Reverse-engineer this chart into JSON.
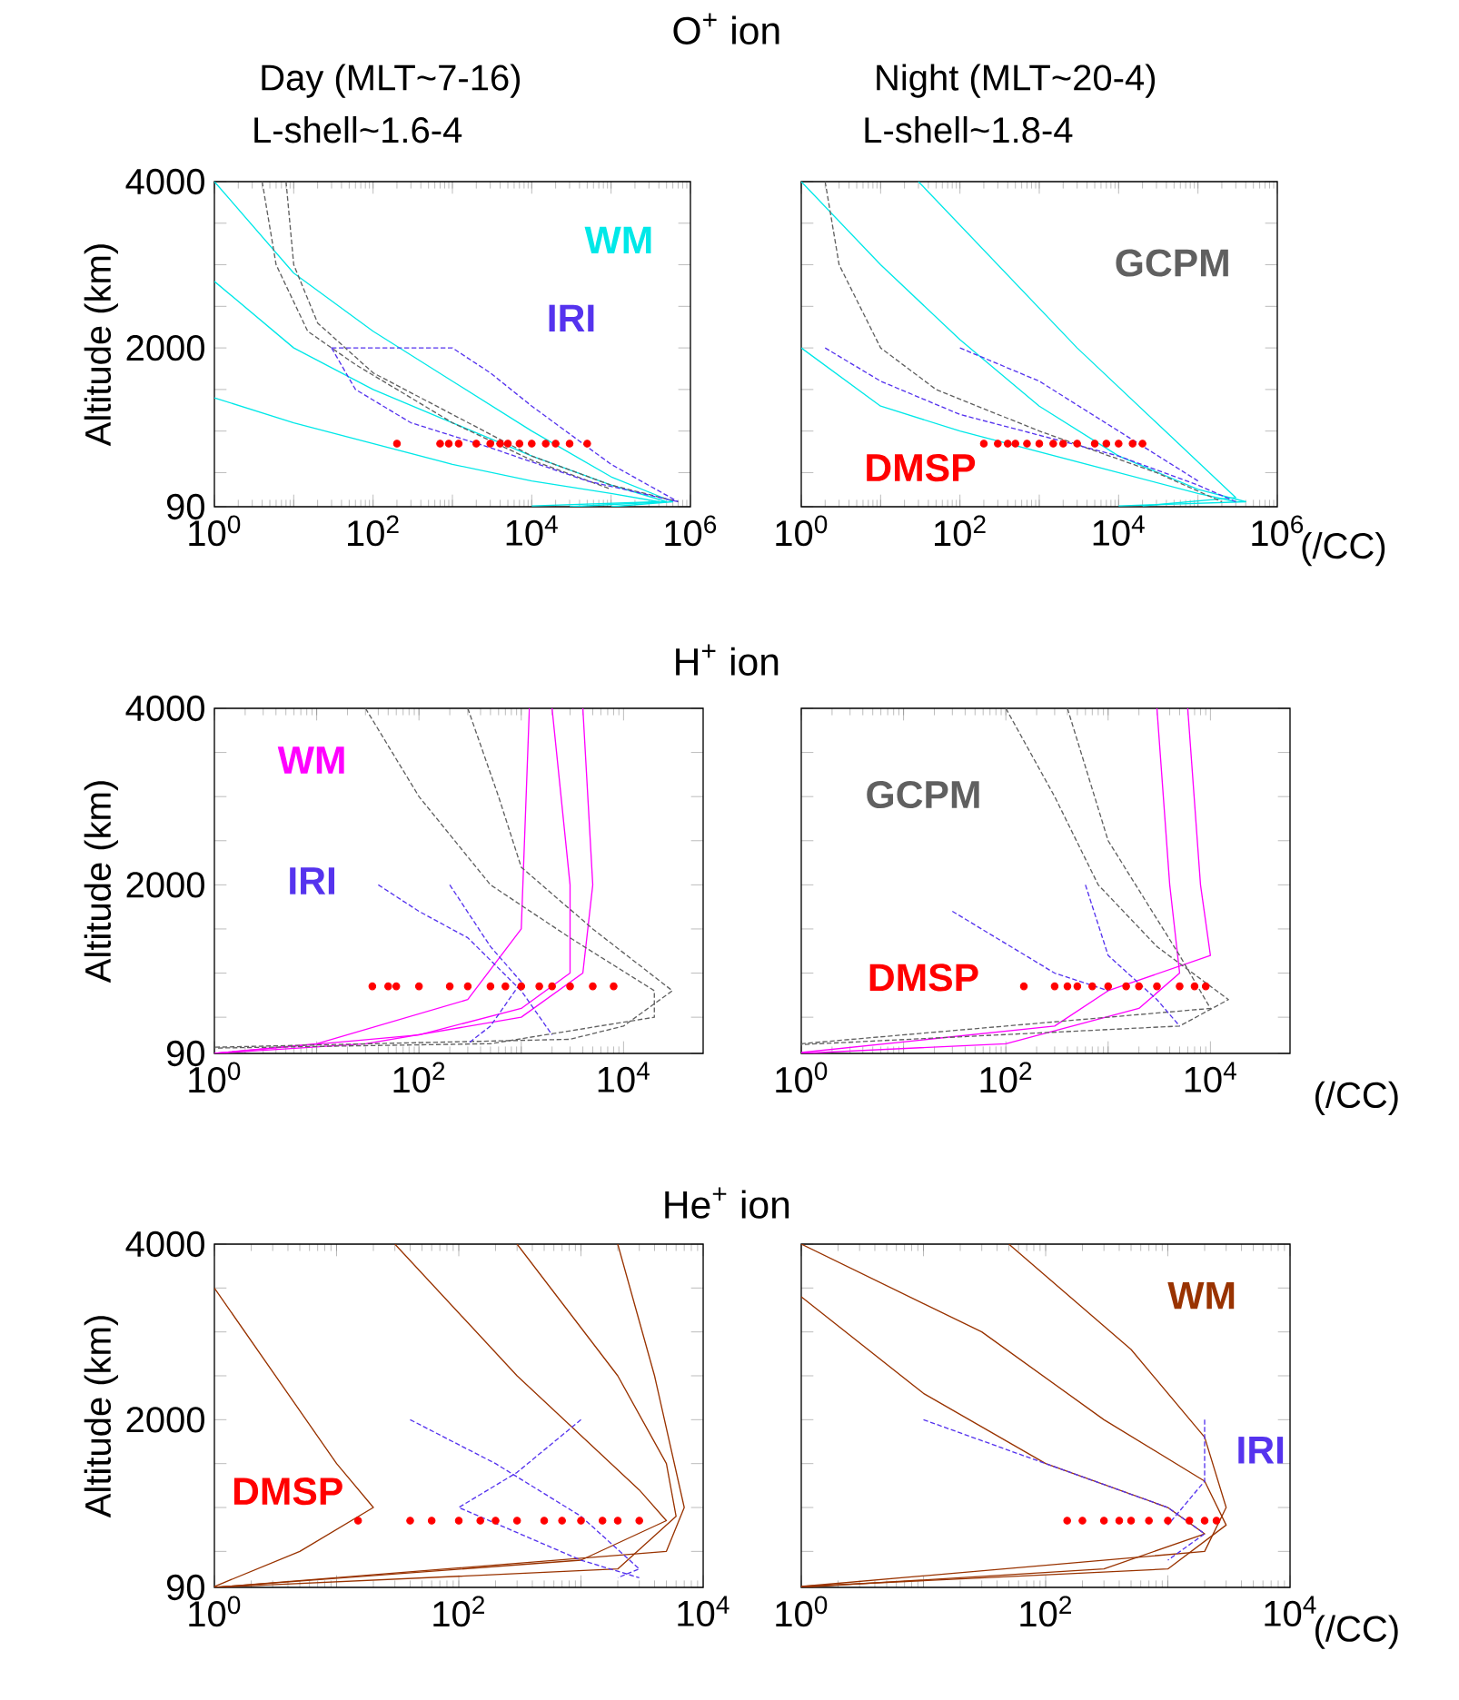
{
  "chart_data": [
    {
      "type": "line",
      "title": "O$^{+}$ ion",
      "subtitle": "Day (MLT~7-16)",
      "annotations": [
        "L-shell~1.6-4"
      ],
      "ylabel": "Altitude (km)",
      "xlim": [
        1,
        1000000
      ],
      "ylim": [
        90,
        4000
      ],
      "log": "x",
      "xticks": [
        {
          "value": 1,
          "label": "10$^{0}$"
        },
        {
          "value": 10,
          "label": null
        },
        {
          "value": 100,
          "label": "10$^{2}$"
        },
        {
          "value": 1000,
          "label": null
        },
        {
          "value": 10000,
          "label": "10$^{4}$"
        },
        {
          "value": 100000,
          "label": null
        },
        {
          "value": 1000000,
          "label": "10$^{6}$"
        }
      ],
      "yticks": [
        90,
        {
          "value": 500,
          "label": null
        },
        {
          "value": 1000,
          "label": null
        },
        {
          "value": 1500,
          "label": null
        },
        2000,
        {
          "value": 2500,
          "label": null
        },
        {
          "value": 3000,
          "label": null
        },
        {
          "value": 3500,
          "label": null
        },
        4000
      ],
      "series": [
        {
          "name": "WM",
          "type": "line",
          "line_style": "solid",
          "color": "#00e8e8",
          "x": [
            1,
            10,
            100,
            1000,
            10000,
            100000,
            600000,
            100000
          ],
          "values": [
            4000,
            2900,
            2200,
            1600,
            1000,
            450,
            150,
            90
          ]
        },
        {
          "type": "line",
          "line_style": "solid",
          "color": "#00e8e8",
          "x": [
            1,
            10,
            100,
            1000,
            10000,
            100000,
            500000,
            30000
          ],
          "values": [
            2800,
            2000,
            1500,
            1100,
            700,
            350,
            150,
            90
          ]
        },
        {
          "type": "line",
          "line_style": "solid",
          "color": "#00e8e8",
          "x": [
            1,
            10,
            100,
            1000,
            10000,
            100000,
            400000,
            10000
          ],
          "values": [
            1400,
            1100,
            850,
            600,
            400,
            250,
            150,
            100
          ]
        },
        {
          "type": "line",
          "line_style": "dashed",
          "color": "#606060",
          "x": [
            8,
            10,
            20,
            100,
            1000,
            10000,
            100000,
            700000
          ],
          "values": [
            4000,
            3000,
            2300,
            1700,
            1200,
            700,
            350,
            150
          ]
        },
        {
          "type": "line",
          "line_style": "dashed",
          "color": "#606060",
          "x": [
            4,
            6,
            15,
            60,
            1000,
            10000,
            100000
          ],
          "values": [
            4000,
            3000,
            2200,
            1800,
            1100,
            650,
            300
          ]
        },
        {
          "name": "IRI",
          "type": "line",
          "line_style": "dashed",
          "color": "#5533ee",
          "x": [
            30,
            1000,
            3000,
            10000,
            100000,
            700000
          ],
          "values": [
            2000,
            2000,
            1700,
            1300,
            600,
            150
          ]
        },
        {
          "type": "line",
          "line_style": "dashed",
          "color": "#5533ee",
          "x": [
            30,
            60,
            300,
            3000,
            50000,
            700000
          ],
          "values": [
            2000,
            1500,
            1100,
            800,
            400,
            150
          ]
        },
        {
          "type": "scatter",
          "marker": "circle",
          "color": "#ff0000",
          "x": [
            200,
            700,
            900,
            1200,
            2000,
            3000,
            4000,
            5000,
            7000,
            10000,
            15000,
            20000,
            30000,
            50000
          ],
          "values": [
            850,
            850,
            850,
            850,
            850,
            850,
            850,
            850,
            850,
            850,
            850,
            850,
            850,
            850
          ]
        }
      ]
    },
    {
      "type": "line",
      "subtitle": "Night (MLT~20-4)",
      "annotations": [
        "L-shell~1.8-4"
      ],
      "xlabel": "(/CC)",
      "tick_labels": "x",
      "xlim": [
        1,
        1000000
      ],
      "ylim": [
        90,
        4000
      ],
      "log": "x",
      "xticks": [
        {
          "value": 1,
          "label": "10$^{0}$"
        },
        {
          "value": 10,
          "label": null
        },
        {
          "value": 100,
          "label": "10$^{2}$"
        },
        {
          "value": 1000,
          "label": null
        },
        {
          "value": 10000,
          "label": "10$^{4}$"
        },
        {
          "value": 100000,
          "label": null
        },
        {
          "value": 1000000,
          "label": "10$^{6}$"
        }
      ],
      "yticks": [
        90,
        {
          "value": 500,
          "label": null
        },
        {
          "value": 1000,
          "label": null
        },
        {
          "value": 1500,
          "label": null
        },
        2000,
        {
          "value": 2500,
          "label": null
        },
        {
          "value": 3000,
          "label": null
        },
        {
          "value": 3500,
          "label": null
        },
        4000
      ],
      "series": [
        {
          "type": "line",
          "line_style": "solid",
          "color": "#00e8e8",
          "x": [
            1,
            10,
            100,
            1000,
            10000,
            100000,
            400000,
            10000
          ],
          "values": [
            4000,
            3000,
            2100,
            1300,
            700,
            300,
            150,
            100
          ]
        },
        {
          "type": "line",
          "line_style": "solid",
          "color": "#00e8e8",
          "x": [
            30,
            300,
            3000,
            30000,
            300000,
            20000
          ],
          "values": [
            4000,
            3000,
            2000,
            1100,
            200,
            100
          ]
        },
        {
          "type": "line",
          "line_style": "solid",
          "color": "#00e8e8",
          "x": [
            1,
            10,
            100,
            1000,
            10000,
            100000,
            300000
          ],
          "values": [
            2000,
            1300,
            1000,
            750,
            500,
            250,
            150
          ]
        },
        {
          "name": "GCPM",
          "type": "line",
          "line_style": "dashed",
          "color": "#606060",
          "x": [
            2,
            3,
            10,
            50,
            1000,
            30000,
            200000
          ],
          "values": [
            4000,
            3000,
            2000,
            1500,
            1000,
            500,
            150
          ]
        },
        {
          "type": "line",
          "line_style": "dashed",
          "color": "#5533ee",
          "x": [
            2,
            10,
            100,
            1000,
            10000,
            100000,
            300000
          ],
          "values": [
            2000,
            1600,
            1200,
            950,
            700,
            350,
            150
          ]
        },
        {
          "type": "line",
          "line_style": "dashed",
          "color": "#5533ee",
          "x": [
            100,
            1000,
            10000,
            100000
          ],
          "values": [
            2000,
            1600,
            1000,
            400
          ]
        },
        {
          "name": "DMSP",
          "type": "scatter",
          "marker": "circle",
          "color": "#ff0000",
          "x": [
            200,
            300,
            400,
            500,
            700,
            1000,
            1500,
            2000,
            3000,
            5000,
            7000,
            10000,
            15000,
            20000
          ],
          "values": [
            850,
            850,
            850,
            850,
            850,
            850,
            850,
            850,
            850,
            850,
            850,
            850,
            850,
            850
          ]
        }
      ]
    },
    {
      "type": "line",
      "title": "H$^{+}$ ion",
      "ylabel": "Altitude (km)",
      "xlim": [
        1,
        60000
      ],
      "ylim": [
        90,
        4000
      ],
      "log": "x",
      "xticks": [
        {
          "value": 1,
          "label": "10$^{0}$"
        },
        {
          "value": 10,
          "label": null
        },
        {
          "value": 100,
          "label": "10$^{2}$"
        },
        {
          "value": 1000,
          "label": null
        },
        {
          "value": 10000,
          "label": "10$^{4}$"
        }
      ],
      "yticks": [
        90,
        {
          "value": 500,
          "label": null
        },
        {
          "value": 1000,
          "label": null
        },
        {
          "value": 1500,
          "label": null
        },
        2000,
        {
          "value": 2500,
          "label": null
        },
        {
          "value": 3000,
          "label": null
        },
        {
          "value": 3500,
          "label": null
        },
        4000
      ],
      "series": [
        {
          "name": "WM",
          "type": "line",
          "line_style": "solid",
          "color": "#ff00ff",
          "x": [
            1,
            100,
            1000,
            3000,
            3000,
            2000
          ],
          "values": [
            90,
            300,
            600,
            1000,
            2000,
            4000
          ]
        },
        {
          "type": "line",
          "line_style": "solid",
          "color": "#ff00ff",
          "x": [
            1,
            10,
            300,
            1000,
            1200
          ],
          "values": [
            90,
            200,
            700,
            1500,
            4000
          ]
        },
        {
          "type": "line",
          "line_style": "solid",
          "color": "#ff00ff",
          "x": [
            1,
            30,
            1000,
            4000,
            5000,
            4000
          ],
          "values": [
            90,
            200,
            500,
            1000,
            2000,
            4000
          ]
        },
        {
          "type": "line",
          "line_style": "dashed",
          "color": "#606060",
          "x": [
            30,
            100,
            500,
            3000,
            20000,
            20000,
            500,
            1
          ],
          "values": [
            4000,
            3000,
            2000,
            1400,
            800,
            500,
            200,
            150
          ]
        },
        {
          "type": "line",
          "line_style": "dashed",
          "color": "#606060",
          "x": [
            300,
            600,
            1000,
            5000,
            30000,
            10000,
            3000,
            1
          ],
          "values": [
            4000,
            3000,
            2200,
            1500,
            800,
            400,
            250,
            160
          ]
        },
        {
          "name": "IRI",
          "type": "line",
          "line_style": "dashed",
          "color": "#5533ee",
          "x": [
            200,
            500,
            1000,
            500,
            300
          ],
          "values": [
            2000,
            1300,
            900,
            400,
            200
          ]
        },
        {
          "type": "line",
          "line_style": "dashed",
          "color": "#5533ee",
          "x": [
            40,
            100,
            300,
            1000,
            2000
          ],
          "values": [
            2000,
            1700,
            1400,
            800,
            300
          ]
        },
        {
          "type": "scatter",
          "marker": "circle",
          "color": "#ff0000",
          "x": [
            35,
            50,
            60,
            100,
            200,
            300,
            500,
            700,
            1000,
            1500,
            2000,
            3000,
            5000,
            8000
          ],
          "values": [
            850,
            850,
            850,
            850,
            850,
            850,
            850,
            850,
            850,
            850,
            850,
            850,
            850,
            850
          ]
        }
      ]
    },
    {
      "type": "line",
      "xlabel": "(/CC)",
      "tick_labels": "x",
      "xlim": [
        1,
        60000
      ],
      "ylim": [
        90,
        4000
      ],
      "log": "x",
      "xticks": [
        {
          "value": 1,
          "label": "10$^{0}$"
        },
        {
          "value": 10,
          "label": null
        },
        {
          "value": 100,
          "label": "10$^{2}$"
        },
        {
          "value": 1000,
          "label": null
        },
        {
          "value": 10000,
          "label": "10$^{4}$"
        }
      ],
      "yticks": [
        90,
        {
          "value": 500,
          "label": null
        },
        {
          "value": 1000,
          "label": null
        },
        {
          "value": 1500,
          "label": null
        },
        2000,
        {
          "value": 2500,
          "label": null
        },
        {
          "value": 3000,
          "label": null
        },
        {
          "value": 3500,
          "label": null
        },
        4000
      ],
      "series": [
        {
          "type": "line",
          "line_style": "solid",
          "color": "#ff00ff",
          "x": [
            1,
            100,
            2000,
            5000,
            4000,
            3000
          ],
          "values": [
            90,
            200,
            600,
            1000,
            2000,
            4000
          ]
        },
        {
          "type": "line",
          "line_style": "solid",
          "color": "#ff00ff",
          "x": [
            1,
            300,
            1000,
            10000,
            8000,
            6000
          ],
          "values": [
            100,
            400,
            800,
            1200,
            2000,
            4000
          ]
        },
        {
          "name": "GCPM",
          "type": "line",
          "line_style": "dashed",
          "color": "#606060",
          "x": [
            100,
            300,
            800,
            3000,
            15000,
            5000,
            1
          ],
          "values": [
            4000,
            3000,
            2000,
            1300,
            700,
            400,
            190
          ]
        },
        {
          "type": "line",
          "line_style": "dashed",
          "color": "#606060",
          "x": [
            400,
            1000,
            5000,
            10000,
            1
          ],
          "values": [
            4000,
            2500,
            1200,
            600,
            200
          ]
        },
        {
          "type": "line",
          "line_style": "dashed",
          "color": "#5533ee",
          "x": [
            30,
            300,
            1000
          ],
          "values": [
            1700,
            1000,
            800
          ]
        },
        {
          "type": "line",
          "line_style": "dashed",
          "color": "#5533ee",
          "x": [
            600,
            1000,
            3000,
            5000
          ],
          "values": [
            2000,
            1200,
            700,
            400
          ]
        },
        {
          "name": "DMSP",
          "type": "scatter",
          "marker": "circle",
          "color": "#ff0000",
          "x": [
            150,
            300,
            400,
            500,
            700,
            1000,
            1500,
            2000,
            3000,
            5000,
            7000,
            9000
          ],
          "values": [
            850,
            850,
            850,
            850,
            850,
            850,
            850,
            850,
            850,
            850,
            850,
            850
          ]
        }
      ]
    },
    {
      "type": "line",
      "title": "He$^{+}$ ion",
      "ylabel": "Altitude (km)",
      "xlim": [
        1,
        10000
      ],
      "ylim": [
        90,
        4000
      ],
      "log": "x",
      "xticks": [
        {
          "value": 1,
          "label": "10$^{0}$"
        },
        {
          "value": 10,
          "label": null
        },
        {
          "value": 100,
          "label": "10$^{2}$"
        },
        {
          "value": 1000,
          "label": null
        },
        {
          "value": 10000,
          "label": "10$^{4}$"
        }
      ],
      "yticks": [
        90,
        {
          "value": 500,
          "label": null
        },
        {
          "value": 1000,
          "label": null
        },
        {
          "value": 1500,
          "label": null
        },
        2000,
        {
          "value": 2500,
          "label": null
        },
        {
          "value": 3000,
          "label": null
        },
        {
          "value": 3500,
          "label": null
        },
        4000
      ],
      "series": [
        {
          "type": "line",
          "line_style": "solid",
          "color": "#993300",
          "x": [
            1,
            10,
            20,
            5,
            1
          ],
          "values": [
            3500,
            1500,
            1000,
            500,
            100
          ]
        },
        {
          "type": "line",
          "line_style": "solid",
          "color": "#993300",
          "x": [
            30,
            300,
            3000,
            5000,
            1000,
            1
          ],
          "values": [
            4000,
            2500,
            1200,
            850,
            400,
            90
          ]
        },
        {
          "type": "line",
          "line_style": "solid",
          "color": "#993300",
          "x": [
            300,
            2000,
            5000,
            6000,
            2000,
            1
          ],
          "values": [
            4000,
            2500,
            1500,
            900,
            300,
            90
          ]
        },
        {
          "type": "line",
          "line_style": "solid",
          "color": "#993300",
          "x": [
            2000,
            4000,
            7000,
            5000,
            1
          ],
          "values": [
            4000,
            2500,
            1000,
            500,
            90
          ]
        },
        {
          "type": "line",
          "line_style": "dashed",
          "color": "#5533ee",
          "x": [
            40,
            200,
            1000,
            3000,
            2000
          ],
          "values": [
            2000,
            1500,
            900,
            300,
            200
          ]
        },
        {
          "type": "line",
          "line_style": "dashed",
          "color": "#5533ee",
          "x": [
            1000,
            300,
            100,
            1000,
            3000
          ],
          "values": [
            2000,
            1400,
            1000,
            400,
            200
          ]
        },
        {
          "name": "DMSP",
          "type": "scatter",
          "marker": "circle",
          "color": "#ff0000",
          "x": [
            15,
            40,
            60,
            100,
            150,
            200,
            300,
            500,
            700,
            1000,
            1500,
            2000,
            3000
          ],
          "values": [
            850,
            850,
            850,
            850,
            850,
            850,
            850,
            850,
            850,
            850,
            850,
            850,
            850
          ]
        }
      ]
    },
    {
      "type": "line",
      "xlabel": "(/CC)",
      "tick_labels": "x",
      "xlim": [
        1,
        10000
      ],
      "ylim": [
        90,
        4000
      ],
      "log": "x",
      "xticks": [
        {
          "value": 1,
          "label": "10$^{0}$"
        },
        {
          "value": 10,
          "label": null
        },
        {
          "value": 100,
          "label": "10$^{2}$"
        },
        {
          "value": 1000,
          "label": null
        },
        {
          "value": 10000,
          "label": "10$^{4}$"
        }
      ],
      "yticks": [
        90,
        {
          "value": 500,
          "label": null
        },
        {
          "value": 1000,
          "label": null
        },
        {
          "value": 1500,
          "label": null
        },
        2000,
        {
          "value": 2500,
          "label": null
        },
        {
          "value": 3000,
          "label": null
        },
        {
          "value": 3500,
          "label": null
        },
        4000
      ],
      "series": [
        {
          "name": "WM",
          "type": "line",
          "line_style": "solid",
          "color": "#993300",
          "x": [
            1,
            10,
            100,
            1000,
            2000,
            300,
            1
          ],
          "values": [
            3400,
            2300,
            1500,
            1000,
            700,
            300,
            90
          ]
        },
        {
          "type": "line",
          "line_style": "solid",
          "color": "#993300",
          "x": [
            1,
            30,
            300,
            2000,
            3000,
            1000,
            1
          ],
          "values": [
            4000,
            3000,
            2000,
            1300,
            800,
            300,
            100
          ]
        },
        {
          "type": "line",
          "line_style": "solid",
          "color": "#993300",
          "x": [
            50,
            500,
            2000,
            3000,
            2000,
            1
          ],
          "values": [
            4000,
            2800,
            1800,
            1000,
            500,
            100
          ]
        },
        {
          "name": "IRI",
          "type": "line",
          "line_style": "dashed",
          "color": "#5533ee",
          "x": [
            10,
            100,
            1000,
            2000,
            1000
          ],
          "values": [
            2000,
            1500,
            1000,
            700,
            400
          ]
        },
        {
          "type": "line",
          "line_style": "dashed",
          "color": "#5533ee",
          "x": [
            2000,
            2000,
            1000
          ],
          "values": [
            2000,
            1300,
            800
          ]
        },
        {
          "type": "scatter",
          "marker": "circle",
          "color": "#ff0000",
          "x": [
            150,
            200,
            300,
            400,
            500,
            700,
            1000,
            1500,
            2000,
            2500
          ],
          "values": [
            850,
            850,
            850,
            850,
            850,
            850,
            850,
            850,
            850,
            850
          ]
        }
      ]
    }
  ]
}
